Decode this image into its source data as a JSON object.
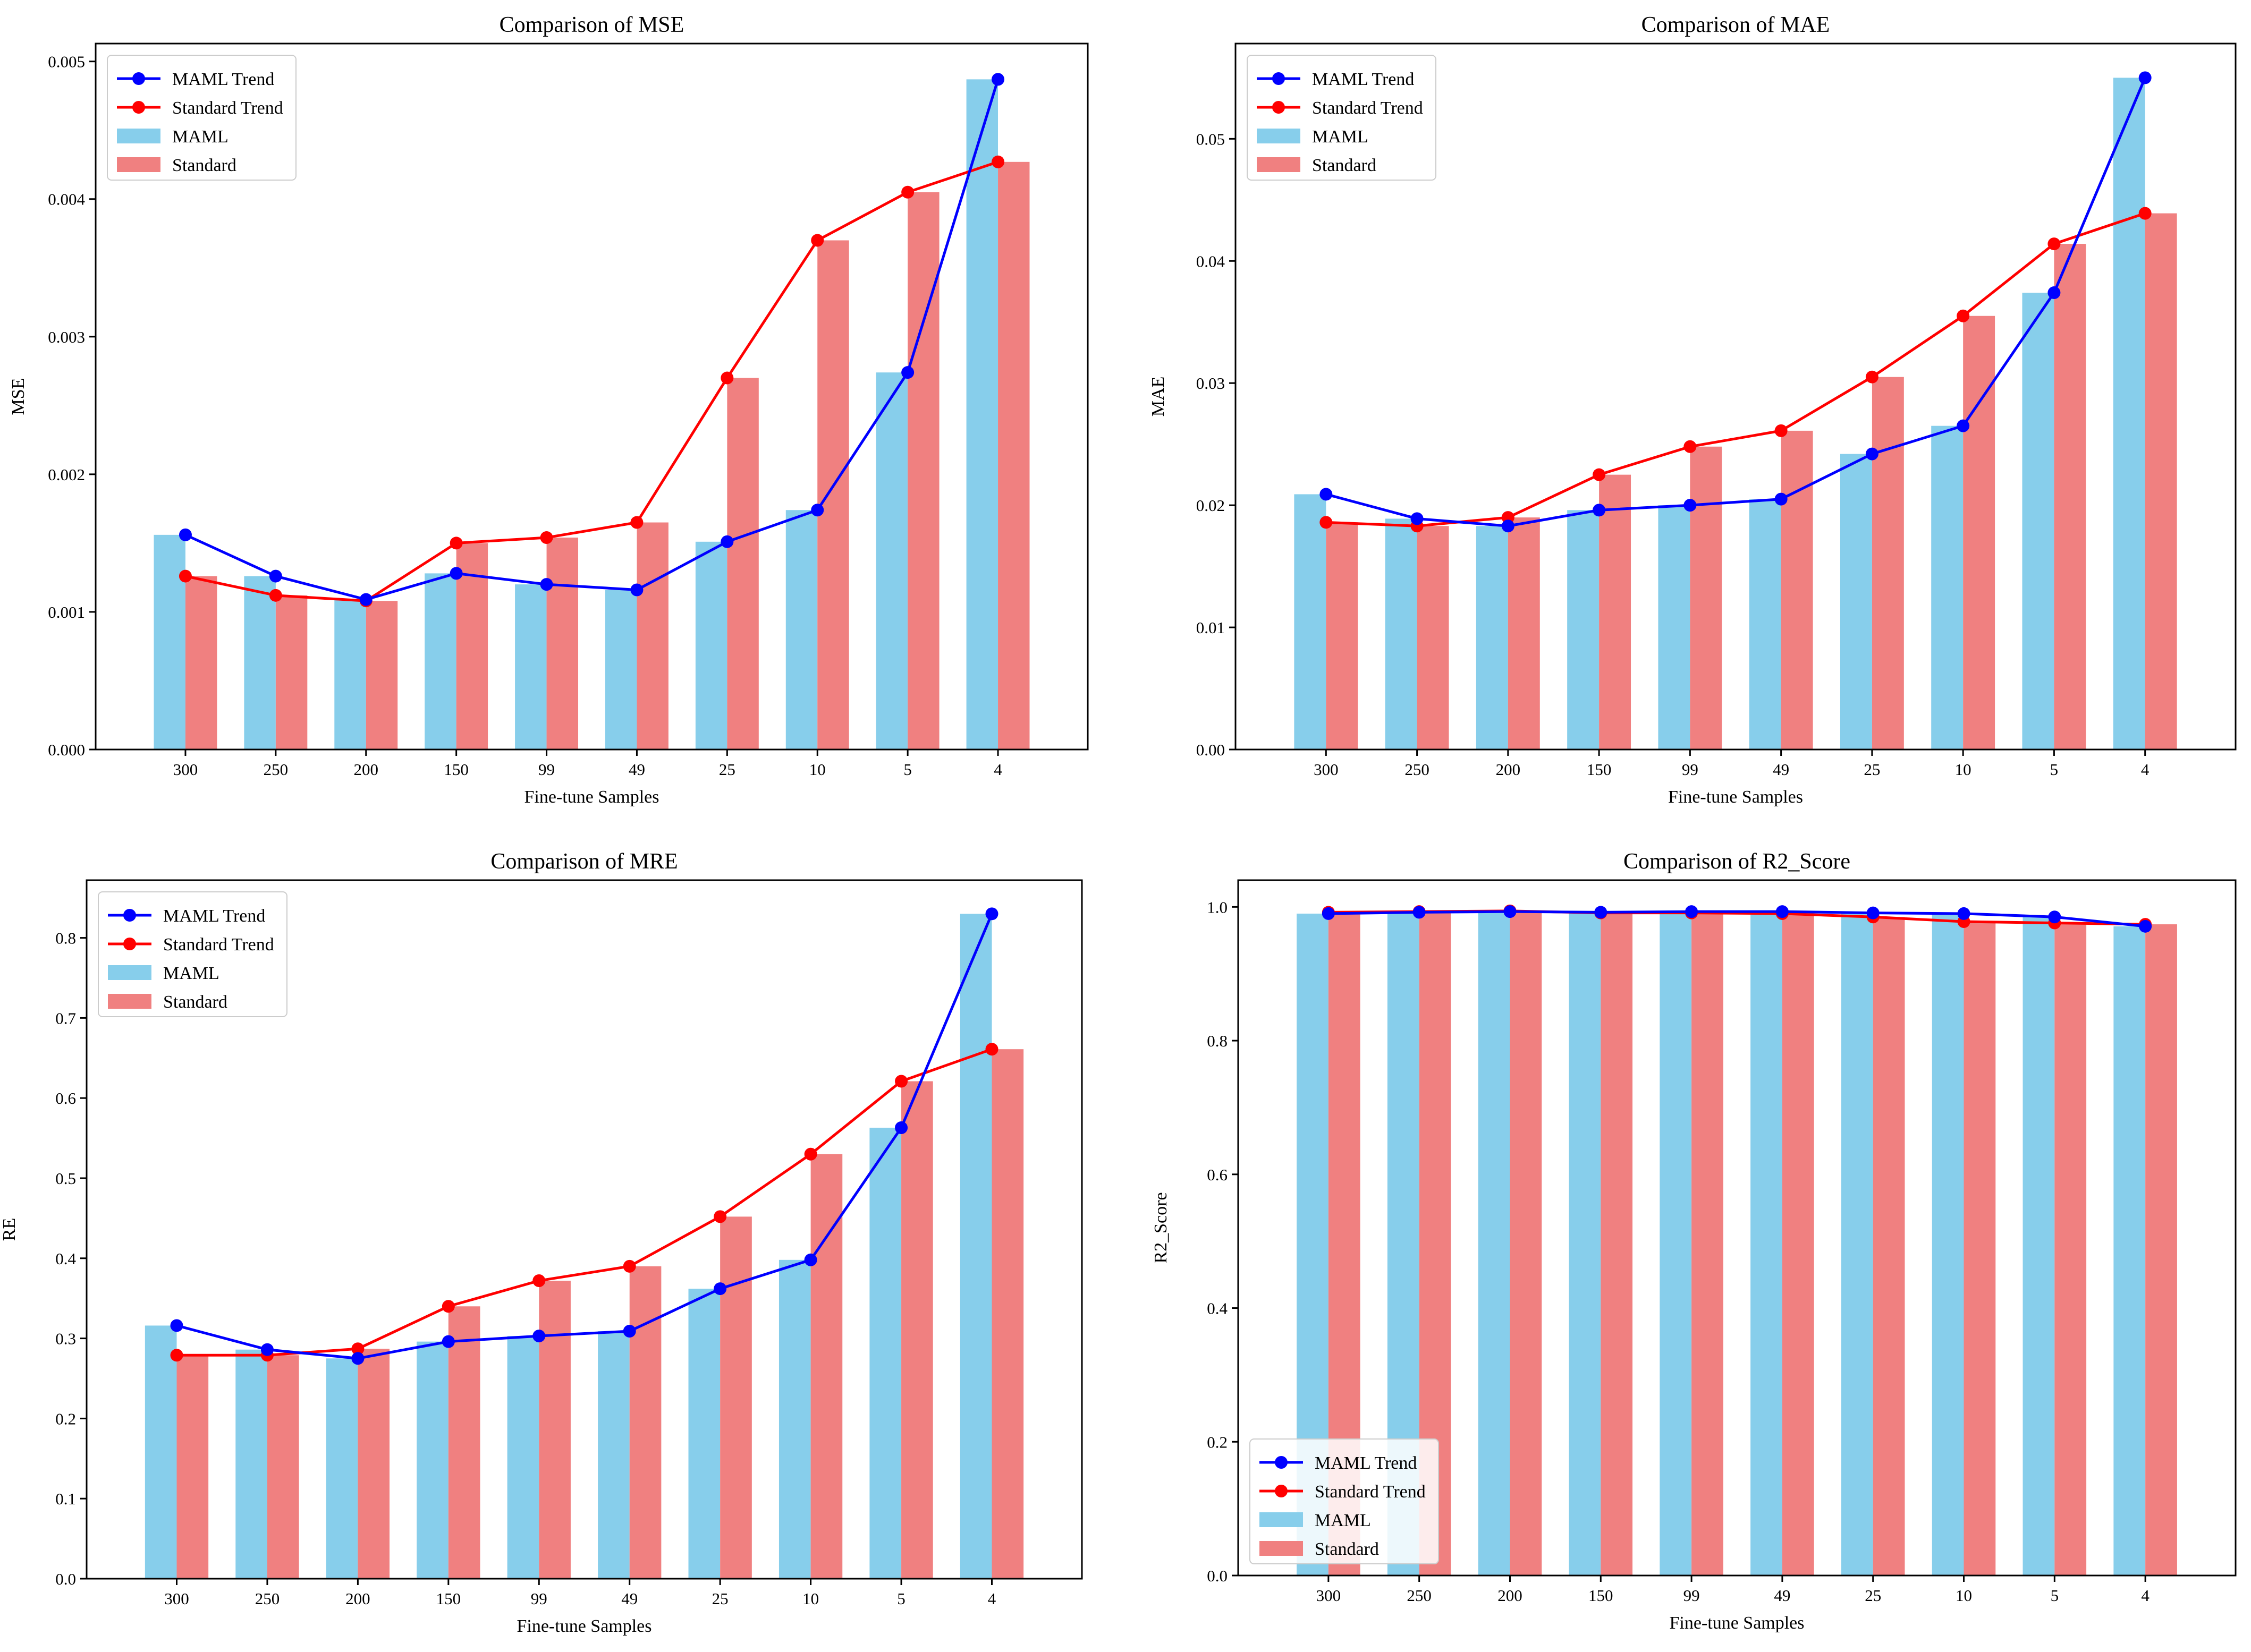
{
  "colors": {
    "maml_bar": "#87CEEB",
    "standard_bar": "#F08080",
    "maml_line": "#0000FF",
    "standard_line": "#FF0000"
  },
  "chart_data": [
    {
      "type": "bar",
      "title": "Comparison of MSE",
      "xlabel": "Fine-tune Samples",
      "ylabel": "MSE",
      "categories": [
        "300",
        "250",
        "200",
        "150",
        "99",
        "49",
        "25",
        "10",
        "5",
        "4"
      ],
      "ylim": [
        0,
        0.00513
      ],
      "yticks": [
        0.0,
        0.001,
        0.002,
        0.003,
        0.004,
        0.005
      ],
      "ytick_labels": [
        "0.000",
        "0.001",
        "0.002",
        "0.003",
        "0.004",
        "0.005"
      ],
      "legend_position": "top-left",
      "legend_labels": [
        "MAML Trend",
        "Standard Trend",
        "MAML",
        "Standard"
      ],
      "series": [
        {
          "name": "MAML",
          "values": [
            0.00156,
            0.00126,
            0.00109,
            0.00128,
            0.0012,
            0.00116,
            0.00151,
            0.00174,
            0.00274,
            0.00487
          ]
        },
        {
          "name": "Standard",
          "values": [
            0.00126,
            0.00112,
            0.00108,
            0.0015,
            0.00154,
            0.00165,
            0.0027,
            0.0037,
            0.00405,
            0.00427
          ]
        }
      ]
    },
    {
      "type": "bar",
      "title": "Comparison of MAE",
      "xlabel": "Fine-tune Samples",
      "ylabel": "MAE",
      "categories": [
        "300",
        "250",
        "200",
        "150",
        "99",
        "49",
        "25",
        "10",
        "5",
        "4"
      ],
      "ylim": [
        0,
        0.0578
      ],
      "yticks": [
        0.0,
        0.01,
        0.02,
        0.03,
        0.04,
        0.05
      ],
      "ytick_labels": [
        "0.00",
        "0.01",
        "0.02",
        "0.03",
        "0.04",
        "0.05"
      ],
      "legend_position": "top-left",
      "legend_labels": [
        "MAML Trend",
        "Standard Trend",
        "MAML",
        "Standard"
      ],
      "series": [
        {
          "name": "MAML",
          "values": [
            0.0209,
            0.0189,
            0.0183,
            0.0196,
            0.02,
            0.0205,
            0.0242,
            0.0265,
            0.0374,
            0.055
          ]
        },
        {
          "name": "Standard",
          "values": [
            0.0186,
            0.0183,
            0.019,
            0.0225,
            0.0248,
            0.0261,
            0.0305,
            0.0355,
            0.0414,
            0.0439
          ]
        }
      ]
    },
    {
      "type": "bar",
      "title": "Comparison of MRE",
      "xlabel": "Fine-tune Samples",
      "ylabel": "RE",
      "categories": [
        "300",
        "250",
        "200",
        "150",
        "99",
        "49",
        "25",
        "10",
        "5",
        "4"
      ],
      "ylim": [
        0,
        0.872
      ],
      "yticks": [
        0.0,
        0.1,
        0.2,
        0.3,
        0.4,
        0.5,
        0.6,
        0.7,
        0.8
      ],
      "ytick_labels": [
        "0.0",
        "0.1",
        "0.2",
        "0.3",
        "0.4",
        "0.5",
        "0.6",
        "0.7",
        "0.8"
      ],
      "legend_position": "top-left",
      "legend_labels": [
        "MAML Trend",
        "Standard Trend",
        "MAML",
        "Standard"
      ],
      "series": [
        {
          "name": "MAML",
          "values": [
            0.316,
            0.286,
            0.275,
            0.296,
            0.303,
            0.309,
            0.362,
            0.398,
            0.563,
            0.83
          ]
        },
        {
          "name": "Standard",
          "values": [
            0.279,
            0.279,
            0.287,
            0.34,
            0.372,
            0.39,
            0.452,
            0.53,
            0.621,
            0.661
          ]
        }
      ]
    },
    {
      "type": "bar",
      "title": "Comparison of R2_Score",
      "xlabel": "Fine-tune Samples",
      "ylabel": "R2_Score",
      "categories": [
        "300",
        "250",
        "200",
        "150",
        "99",
        "49",
        "25",
        "10",
        "5",
        "4"
      ],
      "ylim": [
        0,
        1.04
      ],
      "yticks": [
        0.0,
        0.2,
        0.4,
        0.6,
        0.8,
        1.0
      ],
      "ytick_labels": [
        "0.0",
        "0.2",
        "0.4",
        "0.6",
        "0.8",
        "1.0"
      ],
      "legend_position": "bottom-left",
      "legend_labels": [
        "MAML Trend",
        "Standard Trend",
        "MAML",
        "Standard"
      ],
      "series": [
        {
          "name": "MAML",
          "values": [
            0.99,
            0.992,
            0.993,
            0.992,
            0.993,
            0.993,
            0.991,
            0.99,
            0.985,
            0.971
          ]
        },
        {
          "name": "Standard",
          "values": [
            0.992,
            0.993,
            0.994,
            0.991,
            0.991,
            0.99,
            0.985,
            0.978,
            0.976,
            0.974
          ]
        }
      ]
    }
  ]
}
